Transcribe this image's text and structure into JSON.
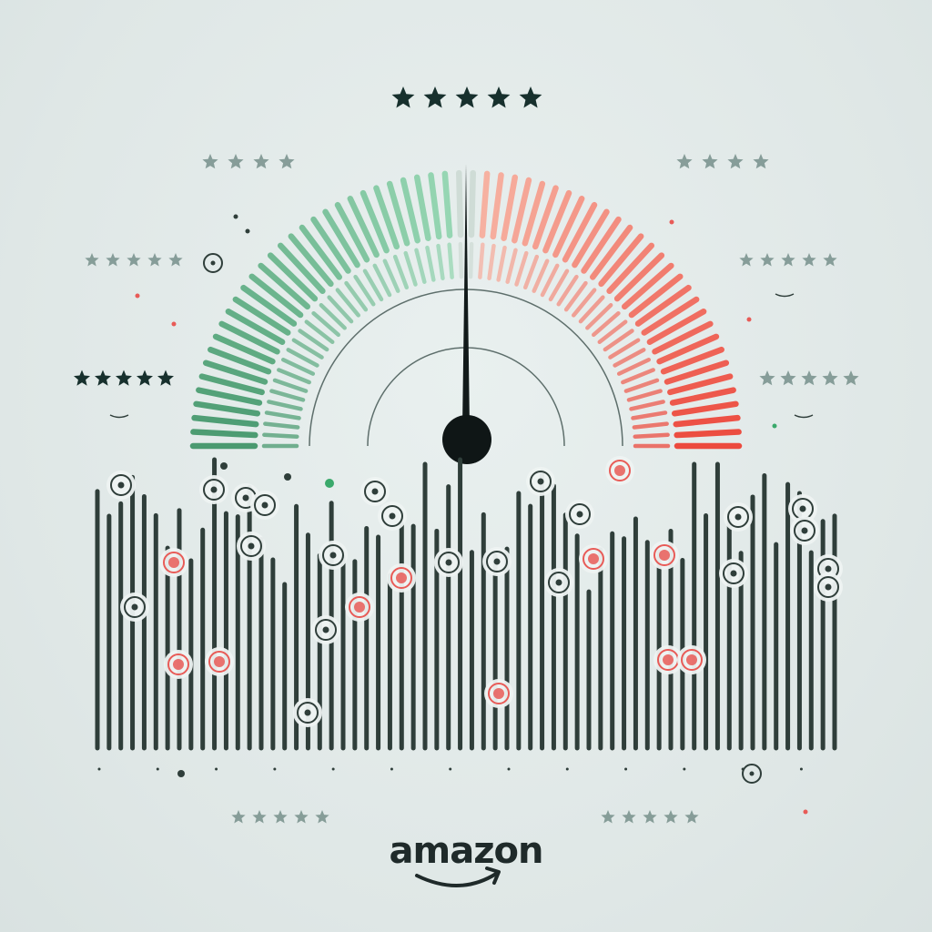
{
  "illustration": {
    "gauge": {
      "needle_position": 0.5,
      "left_color": "#5aa57e",
      "right_color": "#ee5a4b"
    },
    "star_ratings": [
      {
        "stars": 5,
        "tone": "dark"
      },
      {
        "stars": 4,
        "tone": "faded"
      },
      {
        "stars": 4,
        "tone": "faded"
      },
      {
        "stars": 5,
        "tone": "faded"
      },
      {
        "stars": 5,
        "tone": "faded"
      },
      {
        "stars": 5,
        "tone": "dark"
      },
      {
        "stars": 5,
        "tone": "faded"
      },
      {
        "stars": 5,
        "tone": "faded"
      },
      {
        "stars": 5,
        "tone": "faded"
      }
    ],
    "colors": {
      "bars": "#2f3e3a",
      "star_dark": "#17302d",
      "star_faded": "#6f8a85",
      "dot_red": "#e85b57",
      "dot_green": "#3aa96b",
      "background": "#e2e9e8"
    }
  },
  "brand": {
    "logo_text": "amazon"
  }
}
